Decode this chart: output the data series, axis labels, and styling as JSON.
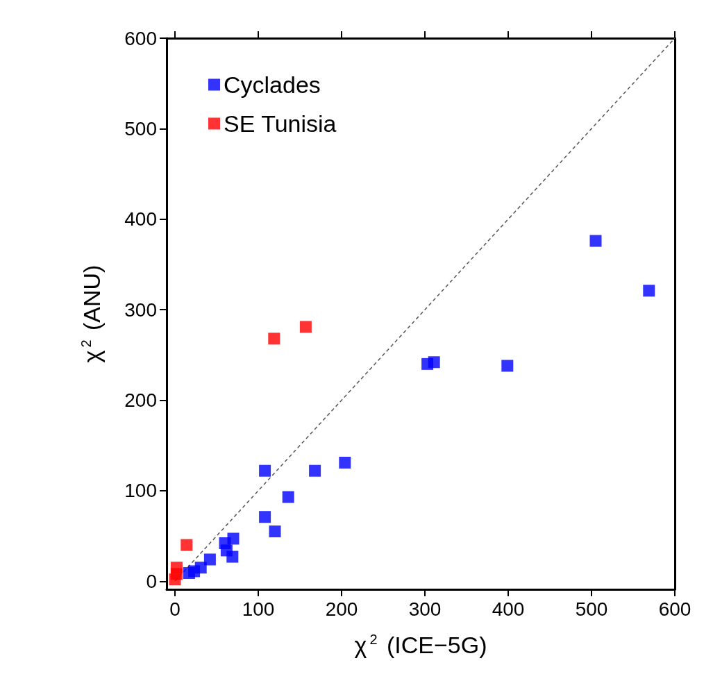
{
  "chart_data": {
    "type": "scatter",
    "xlabel": "χ$^{2}$ (ICE−5G)",
    "ylabel": "χ$^{2}$ (ANU)",
    "xlim": [
      -10,
      600
    ],
    "xticks": [
      0,
      100,
      200,
      300,
      400,
      500,
      600
    ],
    "ylim": [
      -9,
      600
    ],
    "yticks": [
      0,
      100,
      200,
      300,
      400,
      500,
      600
    ],
    "grid": false,
    "legend": "top left",
    "marker": "square",
    "series": [
      {
        "name": "Cyclades",
        "color": "#0000ff",
        "x": [
          505,
          569,
          303,
          311,
          399,
          204,
          168,
          108,
          136,
          108,
          120,
          70,
          60,
          62,
          69,
          42,
          31,
          23,
          17
        ],
        "values": [
          376,
          321,
          240,
          242,
          238,
          131,
          122,
          122,
          93,
          71,
          55,
          47,
          42,
          34,
          27,
          24,
          15,
          11,
          9
        ]
      },
      {
        "name": "SE Tunisia",
        "color": "#ff0000",
        "x": [
          119,
          157,
          14,
          2,
          2,
          0
        ],
        "values": [
          268,
          281,
          40,
          15,
          8,
          2
        ]
      },
      {
        "type": "line",
        "color": "#555555",
        "line_style": "dashed",
        "marker": "none",
        "x": [
          0,
          600
        ],
        "values": [
          0,
          600
        ]
      }
    ]
  }
}
